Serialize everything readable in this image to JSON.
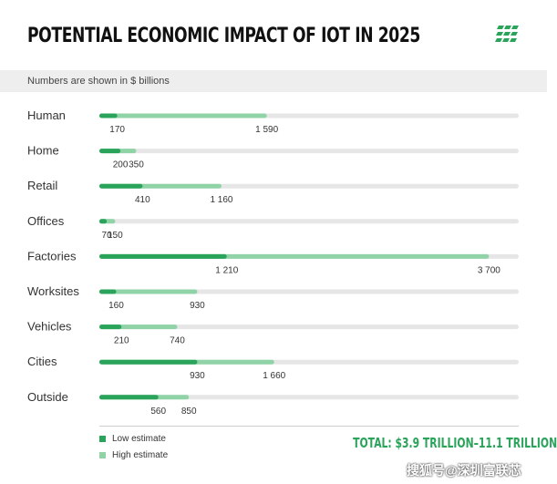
{
  "header": {
    "title": "POTENTIAL ECONOMIC IMPACT OF IOT IN 2025",
    "subtitle": "Numbers are shown in $ billions"
  },
  "colors": {
    "low": "#2aa35b",
    "high": "#8fd3a7",
    "track": "#e6e6e6",
    "accent": "#2aa35b"
  },
  "legend": {
    "low_label": "Low estimate",
    "high_label": "High estimate"
  },
  "total": "TOTAL: $3.9 TRILLION–11.1 TRILLION",
  "watermark": "搜狐号@深圳富联芯",
  "chart_data": {
    "type": "bar",
    "orientation": "horizontal",
    "title": "POTENTIAL ECONOMIC IMPACT OF IOT IN 2025",
    "xlabel": "",
    "ylabel": "",
    "xlim": [
      0,
      4000
    ],
    "categories": [
      "Human",
      "Home",
      "Retail",
      "Offices",
      "Factories",
      "Worksites",
      "Vehicles",
      "Cities",
      "Outside"
    ],
    "series": [
      {
        "name": "Low estimate",
        "values": [
          170,
          200,
          410,
          70,
          1210,
          160,
          210,
          930,
          560
        ],
        "labels": [
          "170",
          "200",
          "410",
          "70",
          "1 210",
          "160",
          "210",
          "930",
          "560"
        ]
      },
      {
        "name": "High estimate",
        "values": [
          1590,
          350,
          1160,
          150,
          3700,
          930,
          740,
          1660,
          850
        ],
        "labels": [
          "1 590",
          "350",
          "1 160",
          "150",
          "3 700",
          "930",
          "740",
          "1 660",
          "850"
        ]
      }
    ]
  }
}
